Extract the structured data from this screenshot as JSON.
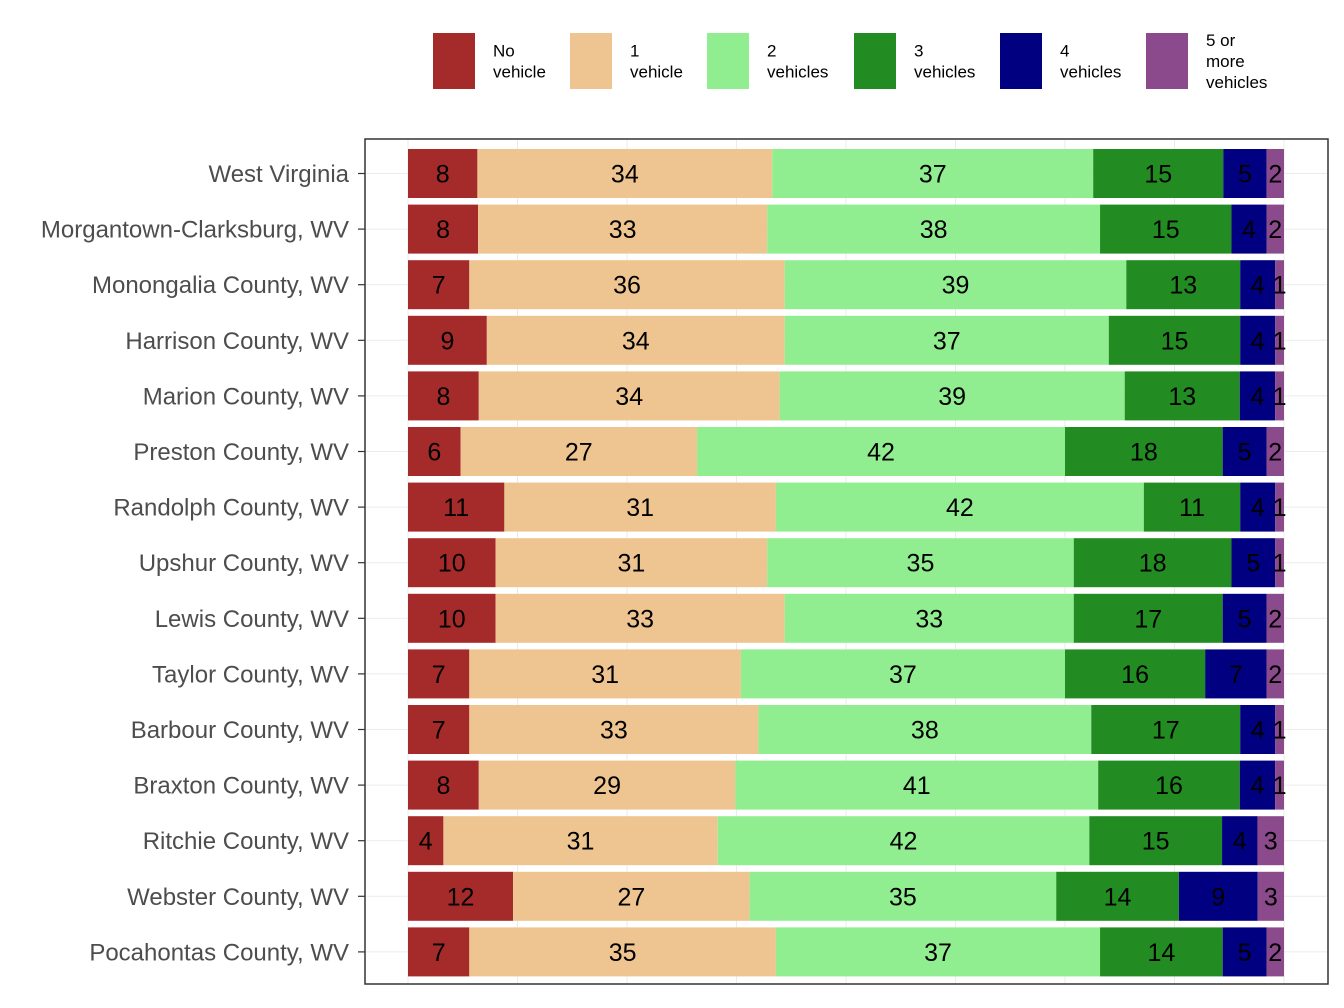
{
  "chart_data": {
    "type": "bar",
    "orientation": "horizontal",
    "stacked": true,
    "legend_position": "top",
    "grid": true,
    "xlim": [
      0,
      100
    ],
    "categories": [
      "West Virginia",
      "Morgantown-Clarksburg, WV",
      "Monongalia County, WV",
      "Harrison County, WV",
      "Marion County, WV",
      "Preston County, WV",
      "Randolph County, WV",
      "Upshur County, WV",
      "Lewis County, WV",
      "Taylor County, WV",
      "Barbour County, WV",
      "Braxton County, WV",
      "Ritchie County, WV",
      "Webster County, WV",
      "Pocahontas County, WV"
    ],
    "series": [
      {
        "name": "No vehicle",
        "legend_lines": [
          "No",
          "vehicle"
        ],
        "color": "#a52a2a",
        "values": [
          8,
          8,
          7,
          9,
          8,
          6,
          11,
          10,
          10,
          7,
          7,
          8,
          4,
          12,
          7
        ]
      },
      {
        "name": "1 vehicle",
        "legend_lines": [
          "1",
          "vehicle"
        ],
        "color": "#eec591",
        "values": [
          34,
          33,
          36,
          34,
          34,
          27,
          31,
          31,
          33,
          31,
          33,
          29,
          31,
          27,
          35
        ]
      },
      {
        "name": "2 vehicles",
        "legend_lines": [
          "2",
          "vehicles"
        ],
        "color": "#90ee90",
        "values": [
          37,
          38,
          39,
          37,
          39,
          42,
          42,
          35,
          33,
          37,
          38,
          41,
          42,
          35,
          37
        ]
      },
      {
        "name": "3 vehicles",
        "legend_lines": [
          "3",
          "vehicles"
        ],
        "color": "#228b22",
        "values": [
          15,
          15,
          13,
          15,
          13,
          18,
          11,
          18,
          17,
          16,
          17,
          16,
          15,
          14,
          14
        ]
      },
      {
        "name": "4 vehicles",
        "legend_lines": [
          "4",
          "vehicles"
        ],
        "color": "#000080",
        "values": [
          5,
          4,
          4,
          4,
          4,
          5,
          4,
          5,
          5,
          7,
          4,
          4,
          4,
          9,
          5
        ]
      },
      {
        "name": "5 or more vehicles",
        "legend_lines": [
          "5 or",
          "more",
          "vehicles"
        ],
        "color": "#8b4a8b",
        "values": [
          2,
          2,
          1,
          1,
          1,
          2,
          1,
          1,
          2,
          2,
          1,
          1,
          3,
          3,
          2
        ]
      }
    ]
  }
}
